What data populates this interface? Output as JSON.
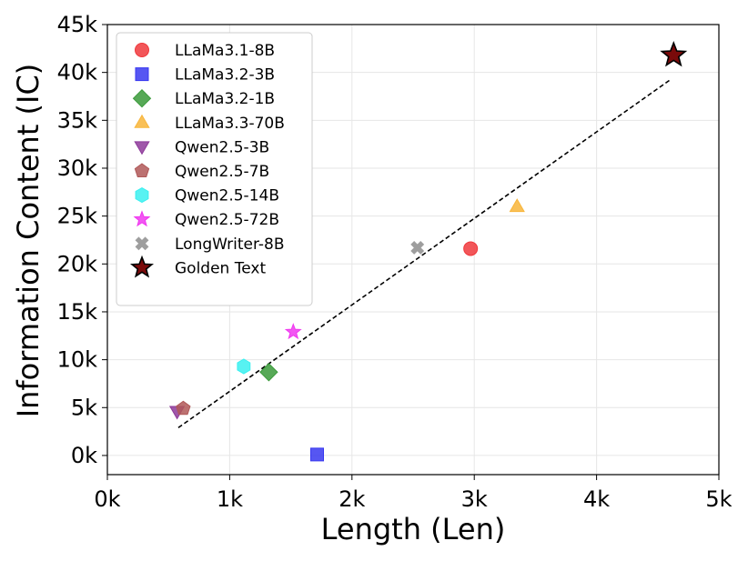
{
  "chart_data": {
    "type": "scatter",
    "xlabel": "Length (Len)",
    "ylabel": "Information Content (IC)",
    "xlim": [
      0,
      5000
    ],
    "ylim": [
      -2000,
      45000
    ],
    "grid": true,
    "legend_position": "top-left",
    "x_ticks": [
      {
        "value": 0,
        "label": "0k"
      },
      {
        "value": 1000,
        "label": "1k"
      },
      {
        "value": 2000,
        "label": "2k"
      },
      {
        "value": 3000,
        "label": "3k"
      },
      {
        "value": 4000,
        "label": "4k"
      },
      {
        "value": 5000,
        "label": "5k"
      }
    ],
    "y_ticks": [
      {
        "value": 0,
        "label": "0k"
      },
      {
        "value": 5000,
        "label": "5k"
      },
      {
        "value": 10000,
        "label": "10k"
      },
      {
        "value": 15000,
        "label": "15k"
      },
      {
        "value": 20000,
        "label": "20k"
      },
      {
        "value": 25000,
        "label": "25k"
      },
      {
        "value": 30000,
        "label": "30k"
      },
      {
        "value": 35000,
        "label": "35k"
      },
      {
        "value": 40000,
        "label": "40k"
      },
      {
        "value": 45000,
        "label": "45k"
      }
    ],
    "series": [
      {
        "name": "LLaMa3.1-8B",
        "x": 2970,
        "y": 21600,
        "marker": "circle",
        "color": "#f0383c"
      },
      {
        "name": "LLaMa3.2-3B",
        "x": 1715,
        "y": 100,
        "marker": "square",
        "color": "#3838f0"
      },
      {
        "name": "LLaMa3.2-1B",
        "x": 1320,
        "y": 8700,
        "marker": "diamond",
        "color": "#3a9a3a"
      },
      {
        "name": "LLaMa3.3-70B",
        "x": 3350,
        "y": 26000,
        "marker": "triangle-up",
        "color": "#f8b53a"
      },
      {
        "name": "Qwen2.5-3B",
        "x": 570,
        "y": 4600,
        "marker": "triangle-down",
        "color": "#8e3a9a"
      },
      {
        "name": "Qwen2.5-7B",
        "x": 620,
        "y": 4900,
        "marker": "pentagon",
        "color": "#b05858"
      },
      {
        "name": "Qwen2.5-14B",
        "x": 1115,
        "y": 9300,
        "marker": "hexagon",
        "color": "#3af0f0"
      },
      {
        "name": "Qwen2.5-72B",
        "x": 1520,
        "y": 12900,
        "marker": "star",
        "color": "#f038f0"
      },
      {
        "name": "LongWriter-8B",
        "x": 2535,
        "y": 21700,
        "marker": "x",
        "color": "#999999"
      },
      {
        "name": "Golden Text",
        "x": 4630,
        "y": 41800,
        "marker": "star-large",
        "color": "#7a0a0a"
      }
    ],
    "trend_line": {
      "x": [
        580,
        4610
      ],
      "y": [
        2900,
        39300
      ],
      "style": "dashed",
      "color": "#000000"
    }
  }
}
